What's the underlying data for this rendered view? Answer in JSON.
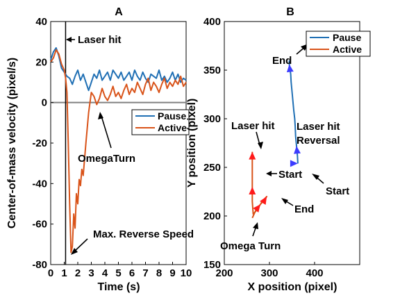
{
  "chart_data": [
    {
      "type": "line",
      "title": "A",
      "xlabel": "Time (s)",
      "ylabel": "Center-of-mass velocity (pixel/s)",
      "xlim": [
        0,
        10
      ],
      "ylim": [
        -80,
        40
      ],
      "xticks": [
        0,
        1,
        2,
        3,
        4,
        5,
        6,
        7,
        8,
        9,
        10
      ],
      "yticks": [
        -80,
        -60,
        -40,
        -20,
        0,
        20,
        40
      ],
      "grid": false,
      "legend": "right",
      "colors": {
        "pause": "#1f6fb4",
        "active": "#d95319",
        "laser": "#000000",
        "zero": "#808080"
      },
      "series": [
        {
          "name": "Pause",
          "x": [
            0,
            0.2,
            0.4,
            0.6,
            0.8,
            1.0,
            1.2,
            1.4,
            1.6,
            1.8,
            2.0,
            2.2,
            2.4,
            2.6,
            2.8,
            3.0,
            3.2,
            3.4,
            3.6,
            3.8,
            4.0,
            4.2,
            4.4,
            4.6,
            4.8,
            5.0,
            5.2,
            5.4,
            5.6,
            5.8,
            6.0,
            6.2,
            6.4,
            6.6,
            6.8,
            7.0,
            7.2,
            7.4,
            7.6,
            7.8,
            8.0,
            8.2,
            8.4,
            8.6,
            8.8,
            9.0,
            9.2,
            9.4,
            9.6,
            9.8,
            10.0
          ],
          "values": [
            21,
            25,
            27,
            23,
            17,
            15,
            13,
            12,
            9,
            13,
            16,
            11,
            14,
            10,
            6,
            10,
            14,
            12,
            16,
            11,
            13,
            15,
            11,
            16,
            14,
            12,
            15,
            11,
            13,
            15,
            11,
            16,
            13,
            11,
            15,
            12,
            10,
            14,
            13,
            12,
            16,
            11,
            13,
            10,
            12,
            15,
            11,
            14,
            10,
            12,
            11
          ]
        },
        {
          "name": "Active",
          "x": [
            0,
            0.2,
            0.4,
            0.6,
            0.8,
            1.0,
            1.1,
            1.2,
            1.3,
            1.4,
            1.5,
            1.6,
            1.7,
            1.8,
            1.9,
            2.0,
            2.1,
            2.2,
            2.3,
            2.4,
            2.6,
            2.8,
            3.0,
            3.2,
            3.4,
            3.6,
            3.8,
            4.0,
            4.2,
            4.4,
            4.6,
            4.8,
            5.0,
            5.2,
            5.4,
            5.6,
            5.8,
            6.0,
            6.2,
            6.4,
            6.6,
            6.8,
            7.0,
            7.2,
            7.4,
            7.6,
            7.8,
            8.0,
            8.2,
            8.4,
            8.6,
            8.8,
            9.0,
            9.2,
            9.4,
            9.6,
            9.8,
            10.0
          ],
          "values": [
            20,
            22,
            26,
            24,
            19,
            16,
            12,
            5,
            -20,
            -50,
            -74,
            -71,
            -55,
            -62,
            -45,
            -50,
            -38,
            -41,
            -33,
            -36,
            -20,
            -5,
            5,
            3,
            -1,
            2,
            7,
            3,
            1,
            4,
            8,
            3,
            5,
            2,
            6,
            9,
            4,
            7,
            5,
            10,
            7,
            4,
            9,
            12,
            6,
            10,
            8,
            5,
            9,
            12,
            7,
            10,
            8,
            11,
            9,
            13,
            8,
            10
          ]
        }
      ],
      "reference_lines": [
        {
          "axis": "x",
          "value": 1.1,
          "label": "Laser hit"
        },
        {
          "axis": "y",
          "value": 0
        }
      ],
      "annotations": [
        {
          "text": "Laser hit",
          "at": [
            1.1,
            31
          ]
        },
        {
          "text": "OmegaTurn",
          "at": [
            3.8,
            -2
          ]
        },
        {
          "text": "Max. Reverse Speed",
          "at": [
            1.5,
            -74
          ]
        }
      ]
    },
    {
      "type": "line",
      "title": "B",
      "xlabel": "X position (pixel)",
      "ylabel": "Y position (pixel)",
      "xlim": [
        200,
        500
      ],
      "ylim": [
        150,
        400
      ],
      "xticks": [
        200,
        300,
        400
      ],
      "yticks": [
        150,
        200,
        250,
        300,
        350,
        400
      ],
      "grid": false,
      "legend": "top-right",
      "colors": {
        "pause": "#1f6fb4",
        "active": "#d95319",
        "pause_arrow": "#3c3cff",
        "active_arrow": "#ff1a1a"
      },
      "series": [
        {
          "name": "Pause",
          "x": [
            363,
            362,
            360,
            358,
            357,
            356,
            354,
            352,
            350,
            348,
            347,
            345,
            344,
            344
          ],
          "y": [
            254,
            262,
            272,
            282,
            292,
            300,
            308,
            318,
            328,
            338,
            346,
            352,
            356,
            360
          ]
        },
        {
          "name": "Active",
          "x": [
            262,
            270,
            280,
            290,
            294,
            284,
            272,
            264,
            262,
            262,
            262,
            262,
            262
          ],
          "y": [
            198,
            206,
            212,
            217,
            220,
            215,
            206,
            202,
            215,
            230,
            245,
            255,
            266
          ]
        }
      ],
      "annotations": [
        {
          "text": "End",
          "at": [
            344,
            361
          ]
        },
        {
          "text": "Laser hit",
          "at": [
            363,
            258
          ]
        },
        {
          "text": "Reversal",
          "at": [
            363,
            258
          ]
        },
        {
          "text": "Start",
          "at": [
            363,
            252
          ]
        },
        {
          "text": "Laser hit",
          "at": [
            262,
            266
          ]
        },
        {
          "text": "Start",
          "at": [
            262,
            244
          ]
        },
        {
          "text": "End",
          "at": [
            294,
            221
          ]
        },
        {
          "text": "Omega Turn",
          "at": [
            258,
            198
          ]
        }
      ]
    }
  ]
}
